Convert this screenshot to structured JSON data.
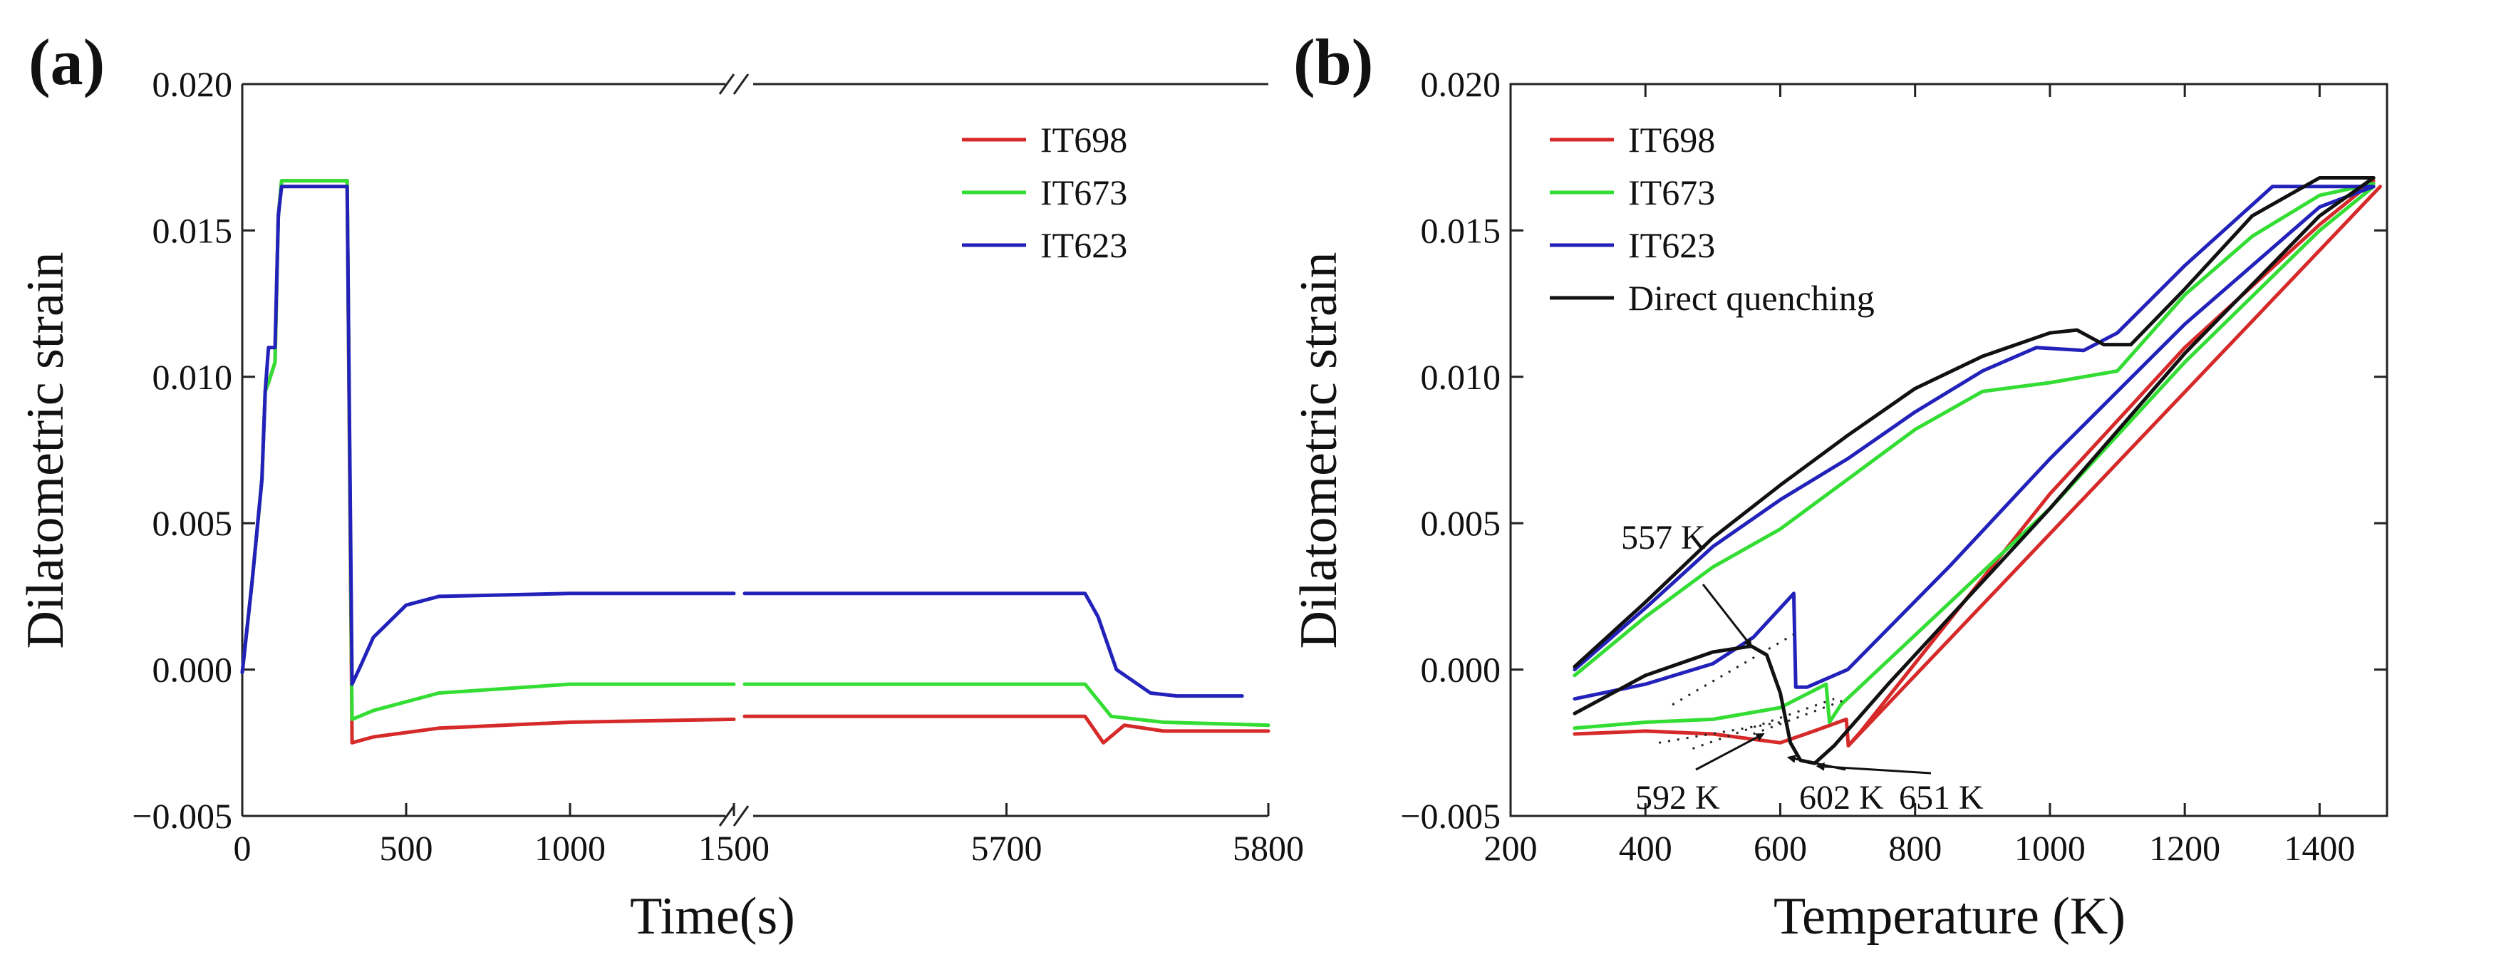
{
  "chart_data": [
    {
      "panel_label": "(a)",
      "type": "line",
      "xlabel": "Time(s)",
      "ylabel": "Dilatometric strain",
      "ylim": [
        -0.005,
        0.02
      ],
      "x_axis_break": true,
      "x_segments": [
        {
          "range": [
            0,
            1500
          ],
          "ticks": [
            0,
            500,
            1000,
            1500
          ]
        },
        {
          "range": [
            5600,
            5800
          ],
          "ticks": [
            5700,
            5800
          ]
        }
      ],
      "x_tick_labels": [
        "0",
        "500",
        "1000",
        "1500",
        "5700",
        "5800"
      ],
      "y_ticks": [
        -0.005,
        0,
        0.005,
        0.01,
        0.015,
        0.02
      ],
      "y_tick_labels": [
        "−0.005",
        "0.000",
        "0.005",
        "0.010",
        "0.015",
        "0.020"
      ],
      "legend": {
        "position": "top-right"
      },
      "series": [
        {
          "name": "IT698",
          "color": "#d62a2a",
          "points": [
            [
              0,
              -0.0001
            ],
            [
              30,
              0.003
            ],
            [
              60,
              0.0065
            ],
            [
              70,
              0.0095
            ],
            [
              80,
              0.0098
            ],
            [
              100,
              0.0105
            ],
            [
              110,
              0.0155
            ],
            [
              120,
              0.0167
            ],
            [
              320,
              0.0167
            ],
            [
              335,
              -0.0025
            ],
            [
              400,
              -0.0023
            ],
            [
              600,
              -0.002
            ],
            [
              1000,
              -0.0018
            ],
            [
              1500,
              -0.0017
            ]
          ],
          "points_right": [
            [
              5600,
              -0.0016
            ],
            [
              5730,
              -0.0016
            ],
            [
              5737,
              -0.0025
            ],
            [
              5745,
              -0.0019
            ],
            [
              5760,
              -0.0021
            ],
            [
              5800,
              -0.0021
            ]
          ]
        },
        {
          "name": "IT673",
          "color": "#33dd33",
          "points": [
            [
              0,
              -0.0001
            ],
            [
              30,
              0.003
            ],
            [
              60,
              0.0065
            ],
            [
              70,
              0.0095
            ],
            [
              80,
              0.0098
            ],
            [
              100,
              0.0105
            ],
            [
              110,
              0.0155
            ],
            [
              120,
              0.0167
            ],
            [
              320,
              0.0167
            ],
            [
              335,
              -0.0017
            ],
            [
              400,
              -0.0014
            ],
            [
              600,
              -0.0008
            ],
            [
              1000,
              -0.0005
            ],
            [
              1500,
              -0.0005
            ]
          ],
          "points_right": [
            [
              5600,
              -0.0005
            ],
            [
              5730,
              -0.0005
            ],
            [
              5740,
              -0.0016
            ],
            [
              5760,
              -0.0018
            ],
            [
              5800,
              -0.0019
            ]
          ]
        },
        {
          "name": "IT623",
          "color": "#2222bb",
          "points": [
            [
              0,
              -0.0001
            ],
            [
              30,
              0.003
            ],
            [
              60,
              0.0065
            ],
            [
              70,
              0.0095
            ],
            [
              80,
              0.011
            ],
            [
              100,
              0.011
            ],
            [
              110,
              0.0155
            ],
            [
              120,
              0.0165
            ],
            [
              320,
              0.0165
            ],
            [
              335,
              -0.0005
            ],
            [
              360,
              0.0001
            ],
            [
              400,
              0.0011
            ],
            [
              500,
              0.0022
            ],
            [
              600,
              0.0025
            ],
            [
              1000,
              0.0026
            ],
            [
              1500,
              0.0026
            ]
          ],
          "points_right": [
            [
              5600,
              0.0026
            ],
            [
              5730,
              0.0026
            ],
            [
              5735,
              0.0018
            ],
            [
              5742,
              0.0
            ],
            [
              5755,
              -0.0008
            ],
            [
              5765,
              -0.0009
            ],
            [
              5790,
              -0.0009
            ]
          ]
        }
      ]
    },
    {
      "panel_label": "(b)",
      "type": "line",
      "xlabel": "Temperature (K)",
      "ylabel": "Dilatometric strain",
      "xlim": [
        200,
        1500
      ],
      "ylim": [
        -0.005,
        0.02
      ],
      "x_ticks": [
        200,
        400,
        600,
        800,
        1000,
        1200,
        1400
      ],
      "x_tick_labels": [
        "200",
        "400",
        "600",
        "800",
        "1000",
        "1200",
        "1400"
      ],
      "y_ticks": [
        -0.005,
        0,
        0.005,
        0.01,
        0.015,
        0.02
      ],
      "y_tick_labels": [
        "−0.005",
        "0.000",
        "0.005",
        "0.010",
        "0.015",
        "0.020"
      ],
      "legend": {
        "position": "top-left"
      },
      "series": [
        {
          "name": "IT698",
          "color": "#d62a2a",
          "segments": [
            [
              [
                295,
                -0.0022
              ],
              [
                400,
                -0.0021
              ],
              [
                500,
                -0.0022
              ],
              [
                600,
                -0.0025
              ],
              [
                650,
                -0.0021
              ],
              [
                698,
                -0.0017
              ],
              [
                701,
                -0.0026
              ],
              [
                1490,
                0.0165
              ]
            ],
            [
              [
                701,
                -0.0026
              ],
              [
                720,
                -0.0021
              ],
              [
                1000,
                0.006
              ],
              [
                1200,
                0.011
              ],
              [
                1400,
                0.0152
              ],
              [
                1480,
                0.0167
              ]
            ]
          ]
        },
        {
          "name": "IT673",
          "color": "#33dd33",
          "segments": [
            [
              [
                295,
                -0.0002
              ],
              [
                400,
                0.0018
              ],
              [
                500,
                0.0035
              ],
              [
                600,
                0.0048
              ],
              [
                700,
                0.0065
              ],
              [
                800,
                0.0082
              ],
              [
                900,
                0.0095
              ],
              [
                1000,
                0.0098
              ],
              [
                1100,
                0.0102
              ],
              [
                1200,
                0.0128
              ],
              [
                1300,
                0.0148
              ],
              [
                1400,
                0.0162
              ],
              [
                1480,
                0.0166
              ]
            ],
            [
              [
                295,
                -0.002
              ],
              [
                400,
                -0.0018
              ],
              [
                500,
                -0.0017
              ],
              [
                600,
                -0.0013
              ],
              [
                668,
                -0.0005
              ],
              [
                673,
                -0.0018
              ],
              [
                690,
                -0.0012
              ],
              [
                1000,
                0.0055
              ],
              [
                1200,
                0.0105
              ],
              [
                1400,
                0.015
              ],
              [
                1480,
                0.0165
              ]
            ]
          ]
        },
        {
          "name": "IT623",
          "color": "#2222bb",
          "segments": [
            [
              [
                295,
                0.0
              ],
              [
                400,
                0.0021
              ],
              [
                500,
                0.0042
              ],
              [
                600,
                0.0058
              ],
              [
                700,
                0.0072
              ],
              [
                800,
                0.0088
              ],
              [
                900,
                0.0102
              ],
              [
                980,
                0.011
              ],
              [
                1050,
                0.0109
              ],
              [
                1100,
                0.0115
              ],
              [
                1200,
                0.0138
              ],
              [
                1330,
                0.0165
              ],
              [
                1480,
                0.0165
              ]
            ],
            [
              [
                295,
                -0.001
              ],
              [
                400,
                -0.0005
              ],
              [
                500,
                0.0002
              ],
              [
                560,
                0.0011
              ],
              [
                620,
                0.0026
              ],
              [
                623,
                -0.0006
              ],
              [
                640,
                -0.0006
              ],
              [
                700,
                0.0
              ],
              [
                850,
                0.0035
              ],
              [
                1000,
                0.0072
              ],
              [
                1200,
                0.0118
              ],
              [
                1400,
                0.0158
              ],
              [
                1480,
                0.0165
              ]
            ]
          ]
        },
        {
          "name": "Direct quenching",
          "color": "#111111",
          "segments": [
            [
              [
                295,
                0.0001
              ],
              [
                400,
                0.0023
              ],
              [
                500,
                0.0045
              ],
              [
                600,
                0.0063
              ],
              [
                700,
                0.008
              ],
              [
                800,
                0.0096
              ],
              [
                900,
                0.0107
              ],
              [
                1000,
                0.0115
              ],
              [
                1040,
                0.0116
              ],
              [
                1080,
                0.0111
              ],
              [
                1120,
                0.0111
              ],
              [
                1200,
                0.013
              ],
              [
                1300,
                0.0155
              ],
              [
                1400,
                0.0168
              ],
              [
                1480,
                0.0168
              ]
            ],
            [
              [
                295,
                -0.0015
              ],
              [
                400,
                -0.0002
              ],
              [
                450,
                0.0002
              ],
              [
                500,
                0.0006
              ],
              [
                557,
                0.0008
              ],
              [
                580,
                0.0005
              ],
              [
                600,
                -0.0008
              ],
              [
                615,
                -0.0025
              ],
              [
                630,
                -0.0031
              ],
              [
                651,
                -0.0032
              ],
              [
                680,
                -0.0026
              ],
              [
                760,
                -0.0005
              ],
              [
                1000,
                0.0055
              ],
              [
                1200,
                0.0108
              ],
              [
                1400,
                0.0155
              ],
              [
                1480,
                0.0168
              ]
            ]
          ]
        }
      ],
      "annotations": [
        {
          "text": "557 K"
        },
        {
          "text": "592 K"
        },
        {
          "text": "602 K"
        },
        {
          "text": "651 K"
        }
      ]
    }
  ]
}
